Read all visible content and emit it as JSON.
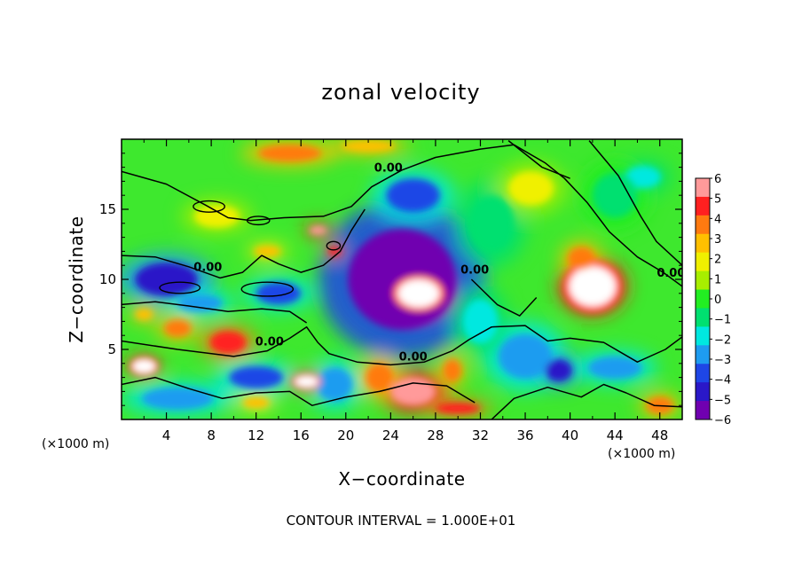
{
  "chart_data": {
    "type": "heatmap",
    "title": "zonal velocity",
    "xlabel": "X−coordinate",
    "ylabel": "Z−coordinate",
    "x_unit_left": "(×1000 m)",
    "x_unit_right": "(×1000 m)",
    "xlim": [
      0,
      50
    ],
    "ylim": [
      0,
      20
    ],
    "x_ticks": [
      4,
      8,
      12,
      16,
      20,
      24,
      28,
      32,
      36,
      40,
      44,
      48
    ],
    "x_tick_labels": [
      "4",
      "8",
      "12",
      "16",
      "20",
      "24",
      "28",
      "32",
      "36",
      "40",
      "44",
      "48"
    ],
    "y_ticks": [
      5,
      10,
      15
    ],
    "y_tick_labels": [
      "5",
      "10",
      "15"
    ],
    "footer": "CONTOUR INTERVAL = 1.000E+01",
    "contour_label": "0.00",
    "contour_label_positions": [
      [
        23.8,
        17.7
      ],
      [
        7.7,
        10.6
      ],
      [
        13.2,
        5.3
      ],
      [
        26.0,
        4.2
      ],
      [
        31.5,
        10.4
      ],
      [
        49.0,
        10.2
      ]
    ],
    "colorbar": {
      "levels": [
        6,
        5,
        4,
        3,
        2,
        1,
        0,
        -1,
        -2,
        -3,
        -4,
        -5,
        -6
      ],
      "level_labels": [
        "6",
        "5",
        "4",
        "3",
        "2",
        "1",
        "0",
        "−1",
        "−2",
        "−3",
        "−4",
        "−5",
        "−6"
      ],
      "band_colors": [
        "#ff9a9a",
        "#ff2020",
        "#ff7a10",
        "#ffc000",
        "#f0f000",
        "#a8ee00",
        "#22ee22",
        "#00e070",
        "#00e8e0",
        "#1e9cf0",
        "#1e46e6",
        "#2a18c8",
        "#7000b0"
      ],
      "saturated_color": "#ffffff"
    },
    "features": [
      {
        "x": 25,
        "y": 10,
        "value": -6,
        "w": 12,
        "h": 9
      },
      {
        "x": 26,
        "y": 16,
        "value": -4,
        "w": 6,
        "h": 3
      },
      {
        "x": 4,
        "y": 10,
        "value": -5,
        "w": 7,
        "h": 3
      },
      {
        "x": 14,
        "y": 9,
        "value": -4,
        "w": 5,
        "h": 2
      },
      {
        "x": 7,
        "y": 8.3,
        "value": -3,
        "w": 5,
        "h": 1.5
      },
      {
        "x": 12,
        "y": 3,
        "value": -4,
        "w": 6,
        "h": 2
      },
      {
        "x": 19,
        "y": 2.5,
        "value": -3,
        "w": 4,
        "h": 3
      },
      {
        "x": 36,
        "y": 4.5,
        "value": -3,
        "w": 6,
        "h": 4
      },
      {
        "x": 39,
        "y": 3.5,
        "value": -5,
        "w": 3,
        "h": 2
      },
      {
        "x": 44,
        "y": 3.7,
        "value": -3,
        "w": 6,
        "h": 2
      },
      {
        "x": 46.5,
        "y": 17.3,
        "value": -2.5,
        "w": 4,
        "h": 2
      },
      {
        "x": 5,
        "y": 1.5,
        "value": -3,
        "w": 8,
        "h": 2
      },
      {
        "x": 33,
        "y": 14,
        "value": -1.5,
        "w": 5,
        "h": 5
      },
      {
        "x": 44,
        "y": 16,
        "value": -1,
        "w": 5,
        "h": 4
      },
      {
        "x": 32,
        "y": 7,
        "value": -2,
        "w": 4,
        "h": 4
      },
      {
        "x": 26.5,
        "y": 9,
        "value": 9,
        "w": 4.5,
        "h": 2.4
      },
      {
        "x": 42,
        "y": 9.5,
        "value": 9,
        "w": 5,
        "h": 3.4
      },
      {
        "x": 41,
        "y": 11.5,
        "value": 4,
        "w": 3,
        "h": 2
      },
      {
        "x": 2,
        "y": 3.8,
        "value": 7,
        "w": 2.5,
        "h": 1.2
      },
      {
        "x": 9.5,
        "y": 5.5,
        "value": 5,
        "w": 4,
        "h": 2
      },
      {
        "x": 5,
        "y": 6.5,
        "value": 4,
        "w": 3,
        "h": 1.5
      },
      {
        "x": 16.5,
        "y": 2.7,
        "value": 7,
        "w": 2.5,
        "h": 1
      },
      {
        "x": 26,
        "y": 2,
        "value": 6,
        "w": 5,
        "h": 2.5
      },
      {
        "x": 29.5,
        "y": 3.5,
        "value": 4,
        "w": 2,
        "h": 2
      },
      {
        "x": 19,
        "y": 12,
        "value": 5,
        "w": 1.5,
        "h": 0.8
      },
      {
        "x": 17.5,
        "y": 13.5,
        "value": 6,
        "w": 2,
        "h": 0.8
      },
      {
        "x": 15,
        "y": 19,
        "value": 3.5,
        "w": 7,
        "h": 1.5
      },
      {
        "x": 22,
        "y": 19.5,
        "value": 3,
        "w": 6,
        "h": 1
      },
      {
        "x": 13,
        "y": 12,
        "value": 2.5,
        "w": 3,
        "h": 1
      },
      {
        "x": 23,
        "y": 3,
        "value": 4,
        "w": 3,
        "h": 2.5
      },
      {
        "x": 2,
        "y": 7.5,
        "value": 3,
        "w": 2,
        "h": 1
      },
      {
        "x": 8.5,
        "y": 14.5,
        "value": 1.3,
        "w": 5,
        "h": 2
      },
      {
        "x": 30,
        "y": 0.8,
        "value": 5,
        "w": 5,
        "h": 1
      },
      {
        "x": 48,
        "y": 1,
        "value": 4,
        "w": 3,
        "h": 1.5
      },
      {
        "x": 12,
        "y": 1.2,
        "value": 2.5,
        "w": 3,
        "h": 1
      },
      {
        "x": 36.5,
        "y": 16.5,
        "value": 1.2,
        "w": 5,
        "h": 3
      }
    ],
    "contour_paths": [
      [
        [
          0,
          17.7
        ],
        [
          4,
          16.8
        ],
        [
          7.5,
          15.3
        ],
        [
          9.5,
          14.4
        ],
        [
          11.5,
          14.2
        ],
        [
          14.5,
          14.4
        ],
        [
          18,
          14.5
        ],
        [
          20.5,
          15.2
        ],
        [
          22.3,
          16.6
        ],
        [
          25,
          17.8
        ],
        [
          28,
          18.7
        ],
        [
          32,
          19.3
        ],
        [
          35,
          19.6
        ],
        [
          37.8,
          18.3
        ],
        [
          39.5,
          17.2
        ],
        [
          41.5,
          15.5
        ],
        [
          43.5,
          13.4
        ],
        [
          46,
          11.6
        ],
        [
          48.3,
          10.5
        ],
        [
          50,
          9.5
        ]
      ],
      [
        [
          34.5,
          19.9
        ],
        [
          37.5,
          18.0
        ],
        [
          40,
          17.2
        ]
      ],
      [
        [
          41.7,
          19.9
        ],
        [
          44.3,
          17.4
        ],
        [
          46.3,
          14.5
        ],
        [
          47.7,
          12.7
        ],
        [
          50,
          11.0
        ]
      ],
      [
        [
          0,
          11.7
        ],
        [
          3,
          11.6
        ],
        [
          6,
          10.9
        ],
        [
          8.8,
          10.1
        ],
        [
          10.8,
          10.5
        ],
        [
          12.5,
          11.7
        ],
        [
          14,
          11.1
        ],
        [
          16,
          10.5
        ],
        [
          18,
          11.0
        ],
        [
          19.5,
          12.0
        ],
        [
          20.5,
          13.5
        ],
        [
          21.7,
          15.0
        ]
      ],
      [
        [
          0,
          8.2
        ],
        [
          3,
          8.4
        ],
        [
          6,
          8.1
        ],
        [
          9.5,
          7.7
        ],
        [
          12.5,
          7.9
        ],
        [
          15,
          7.7
        ],
        [
          16.5,
          6.9
        ]
      ],
      [
        [
          0,
          5.6
        ],
        [
          5,
          5.0
        ],
        [
          10,
          4.5
        ],
        [
          13,
          4.9
        ],
        [
          15,
          5.8
        ],
        [
          16.5,
          6.6
        ],
        [
          17.5,
          5.5
        ],
        [
          18.5,
          4.7
        ],
        [
          21,
          4.1
        ],
        [
          24,
          3.9
        ],
        [
          27,
          4.1
        ],
        [
          29.5,
          4.9
        ],
        [
          31,
          5.7
        ],
        [
          33,
          6.6
        ],
        [
          36,
          6.7
        ],
        [
          38,
          5.6
        ],
        [
          40,
          5.8
        ],
        [
          43,
          5.5
        ],
        [
          46,
          4.1
        ],
        [
          48.5,
          5.0
        ],
        [
          50,
          5.9
        ]
      ],
      [
        [
          31.2,
          10.0
        ],
        [
          33.5,
          8.2
        ],
        [
          35.5,
          7.4
        ],
        [
          37,
          8.7
        ]
      ],
      [
        [
          0,
          2.5
        ],
        [
          3,
          3.0
        ],
        [
          6,
          2.2
        ],
        [
          9,
          1.5
        ],
        [
          12,
          1.9
        ],
        [
          15,
          2.0
        ],
        [
          17,
          1.0
        ],
        [
          20,
          1.6
        ],
        [
          23,
          2.0
        ],
        [
          26,
          2.6
        ],
        [
          29,
          2.4
        ],
        [
          31.5,
          1.2
        ]
      ],
      [
        [
          33,
          0.0
        ],
        [
          35,
          1.5
        ],
        [
          38,
          2.3
        ],
        [
          41,
          1.6
        ],
        [
          43,
          2.5
        ],
        [
          45,
          1.9
        ],
        [
          47.5,
          1.0
        ],
        [
          50,
          0.9
        ]
      ]
    ],
    "zero_contour_islands": [
      {
        "x": 7.8,
        "y": 15.2,
        "rx": 1.4,
        "ry": 0.4
      },
      {
        "x": 12.2,
        "y": 14.2,
        "rx": 1.0,
        "ry": 0.3
      },
      {
        "x": 18.9,
        "y": 12.4,
        "rx": 0.6,
        "ry": 0.3
      },
      {
        "x": 13.0,
        "y": 9.3,
        "rx": 2.3,
        "ry": 0.5
      },
      {
        "x": 5.2,
        "y": 9.4,
        "rx": 1.8,
        "ry": 0.4
      }
    ]
  }
}
